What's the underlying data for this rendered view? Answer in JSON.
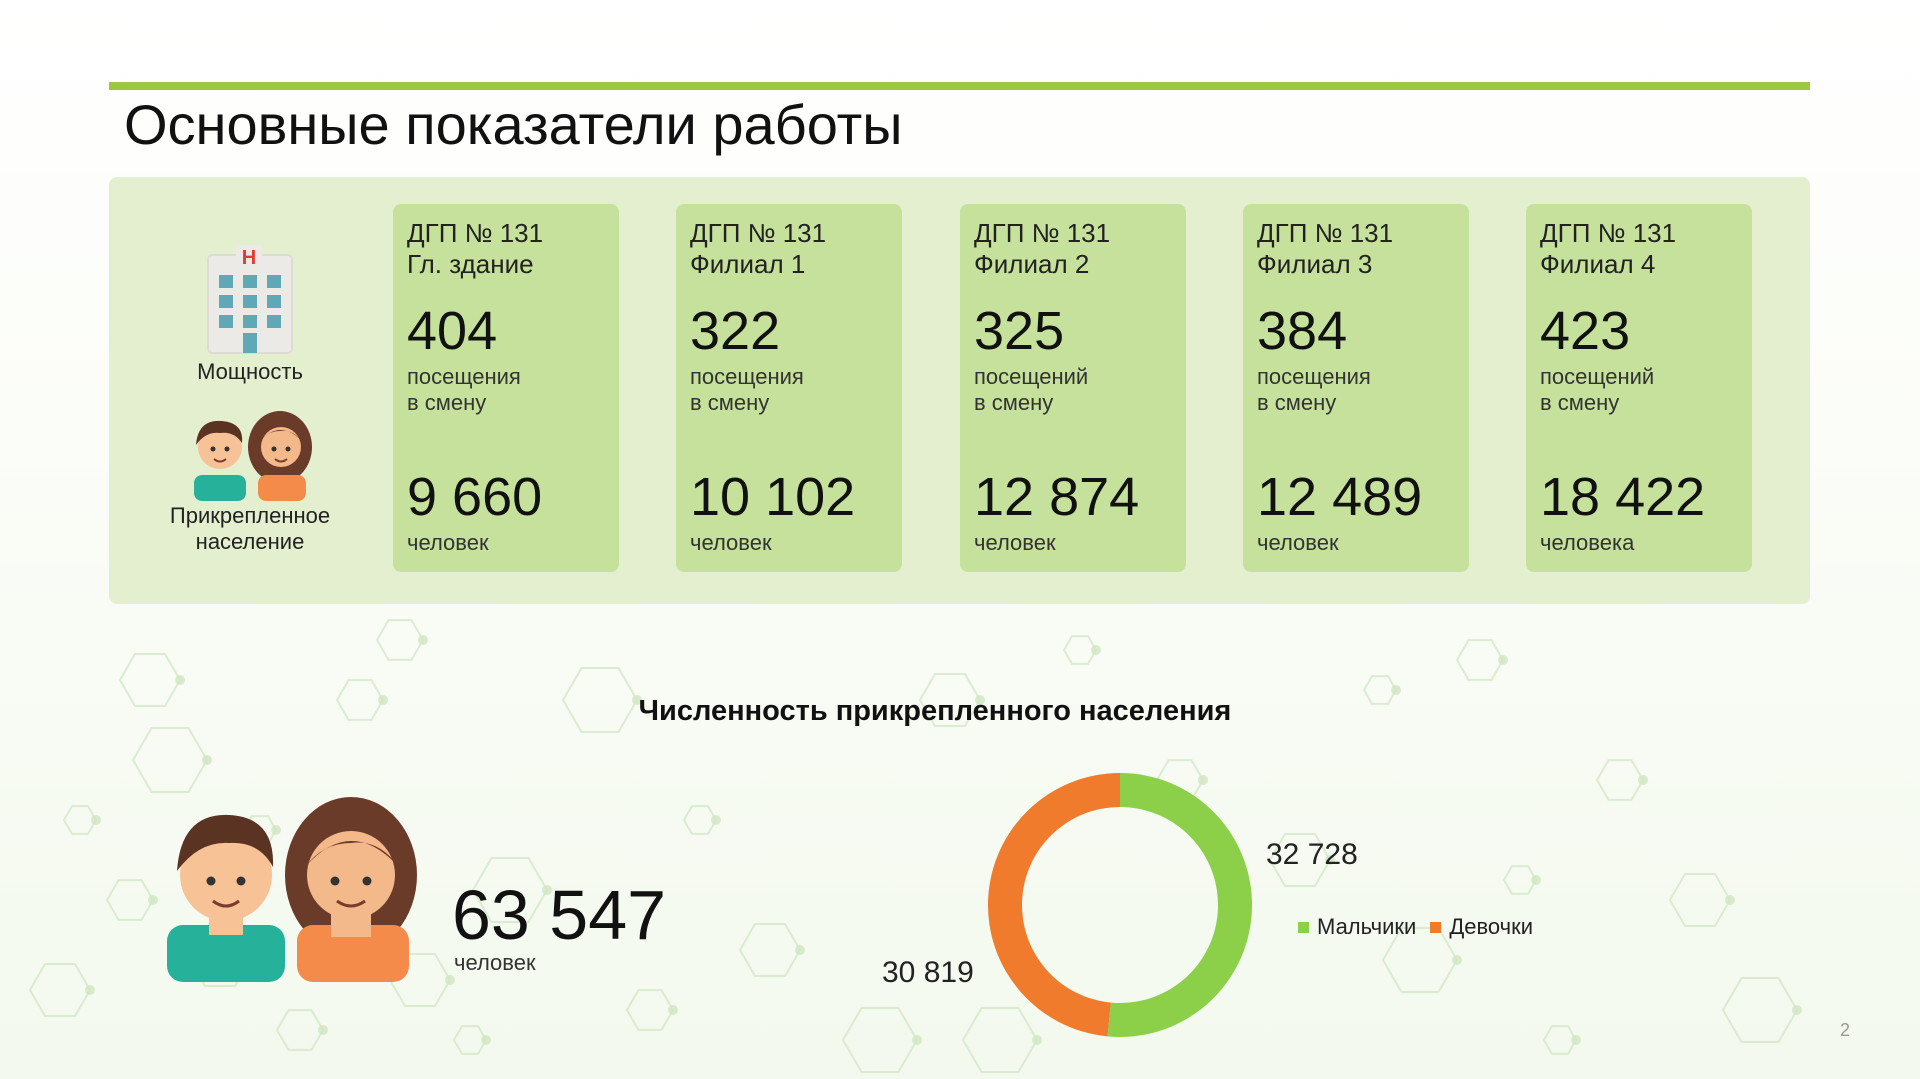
{
  "title": "Основные показатели работы",
  "labels": {
    "capacity": "Мощность",
    "population": "Прикрепленное\nнаселение"
  },
  "cards": [
    {
      "header": "ДГП № 131\nГл. здание",
      "visits": "404",
      "visits_unit": "посещения\nв смену",
      "people": "9 660",
      "people_unit": "человек"
    },
    {
      "header": "ДГП № 131\nФилиал 1",
      "visits": "322",
      "visits_unit": "посещения\nв смену",
      "people": "10 102",
      "people_unit": "человек"
    },
    {
      "header": "ДГП № 131\nФилиал 2",
      "visits": "325",
      "visits_unit": "посещений\nв смену",
      "people": "12 874",
      "people_unit": "человек"
    },
    {
      "header": "ДГП № 131\nФилиал 3",
      "visits": "384",
      "visits_unit": "посещения\nв смену",
      "people": "12 489",
      "people_unit": "человек"
    },
    {
      "header": "ДГП № 131\nФилиал 4",
      "visits": "423",
      "visits_unit": "посещений\nв смену",
      "people": "18 422",
      "people_unit": "человека"
    }
  ],
  "total": {
    "value": "63 547",
    "unit": "человек"
  },
  "chart_data": {
    "type": "pie",
    "title": "Численность прикрепленного населения",
    "series": [
      {
        "name": "Мальчики",
        "value": 32728,
        "label": "32 728",
        "color": "#8cd04a"
      },
      {
        "name": "Девочки",
        "value": 30819,
        "label": "30 819",
        "color": "#f07b2c"
      }
    ],
    "donut": true,
    "legend": "right"
  },
  "page_number": "2",
  "colors": {
    "accent": "#9dc642",
    "panel": "#e4efcf",
    "card": "#c6e19b"
  },
  "icons": [
    "hospital-icon",
    "children-icon",
    "children-large-icon"
  ]
}
